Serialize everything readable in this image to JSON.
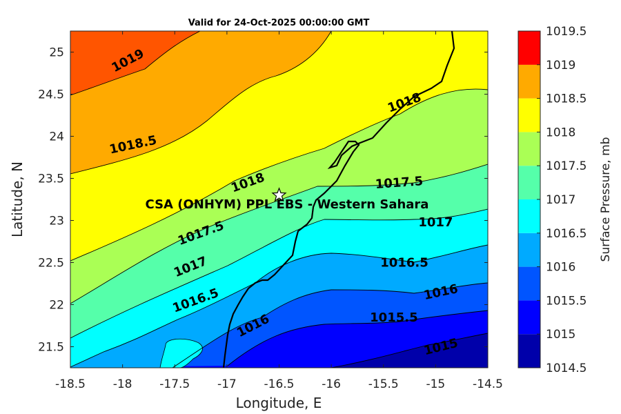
{
  "chart_data": {
    "type": "contour",
    "title": "Valid for 24-Oct-2025 00:00:00 GMT",
    "xlabel": "Longitude, E",
    "ylabel": "Latitude, N",
    "xlim": [
      -18.5,
      -14.5
    ],
    "ylim": [
      21.25,
      25.25
    ],
    "x_ticks": [
      "-18.5",
      "-18",
      "-17.5",
      "-17",
      "-16.5",
      "-16",
      "-15.5",
      "-15",
      "-14.5"
    ],
    "y_ticks": [
      "21.5",
      "22",
      "22.5",
      "23",
      "23.5",
      "24",
      "24.5",
      "25"
    ],
    "colorbar": {
      "label": "Surface Pressure, mb",
      "ticks": [
        "1014.5",
        "1015",
        "1015.5",
        "1016",
        "1016.5",
        "1017",
        "1017.5",
        "1018",
        "1018.5",
        "1019",
        "1019.5"
      ],
      "colors": [
        "#0000aa",
        "#0000ff",
        "#0055ff",
        "#00aaff",
        "#00ffff",
        "#55ffaa",
        "#aaff55",
        "#ffff00",
        "#ffaa00",
        "#ff5500",
        "#ff0000"
      ]
    },
    "contour_labels": [
      {
        "text": "1019",
        "lon": -17.95,
        "lat": 24.9,
        "angle": -28
      },
      {
        "text": "1018.5",
        "lon": -17.9,
        "lat": 23.9,
        "angle": -12
      },
      {
        "text": "1018",
        "lon": -16.8,
        "lat": 23.45,
        "angle": -20
      },
      {
        "text": "1018",
        "lon": -15.3,
        "lat": 24.4,
        "angle": -20
      },
      {
        "text": "1017.5",
        "lon": -17.25,
        "lat": 22.85,
        "angle": -20
      },
      {
        "text": "1017.5",
        "lon": -15.35,
        "lat": 23.45,
        "angle": -4
      },
      {
        "text": "1017",
        "lon": -17.35,
        "lat": 22.45,
        "angle": -22
      },
      {
        "text": "1017",
        "lon": -15.0,
        "lat": 22.98,
        "angle": 0
      },
      {
        "text": "1016.5",
        "lon": -17.3,
        "lat": 22.05,
        "angle": -20
      },
      {
        "text": "1016.5",
        "lon": -15.3,
        "lat": 22.5,
        "angle": 0
      },
      {
        "text": "1016",
        "lon": -16.75,
        "lat": 21.75,
        "angle": -27
      },
      {
        "text": "1016",
        "lon": -14.95,
        "lat": 22.15,
        "angle": -12
      },
      {
        "text": "1015.5",
        "lon": -15.4,
        "lat": 21.85,
        "angle": 0
      },
      {
        "text": "1015",
        "lon": -14.95,
        "lat": 21.5,
        "angle": -14
      }
    ],
    "site": {
      "name": "CSA (ONHYM) PPL EBS  - Western Sahara",
      "lon": -16.5,
      "lat": 23.3
    }
  }
}
